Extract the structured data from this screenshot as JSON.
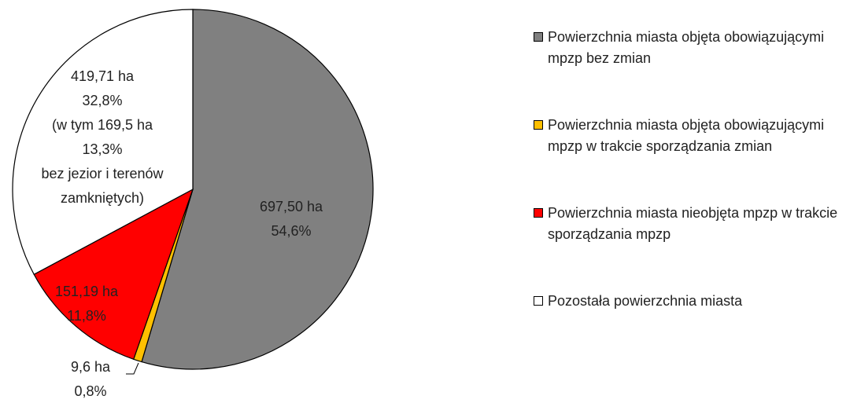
{
  "chart_data": {
    "type": "pie",
    "categories": [
      "Powierzchnia miasta objęta obowiązującymi mpzp bez zmian",
      "Powierzchnia miasta objęta obowiązującymi mpzp w trakcie sporządzania zmian",
      "Powierzchnia miasta nieobjęta mpzp w trakcie sporządzania mpzp",
      "Pozostała powierzchnia miasta"
    ],
    "values": [
      697.5,
      9.6,
      151.19,
      419.71
    ],
    "value_labels": [
      "697,50 ha",
      "9,6 ha",
      "151,19 ha",
      "419,71 ha"
    ],
    "percent_values": [
      54.6,
      0.8,
      11.8,
      32.8
    ],
    "percent_labels": [
      "54,6%",
      "0,8%",
      "11,8%",
      "32,8%"
    ],
    "annotations": [
      "(w tym 169,5 ha",
      "13,3%",
      "bez jezior i terenów",
      "zamkniętych)"
    ],
    "colors": [
      "#808080",
      "#ffc000",
      "#ff0000",
      "#ffffff"
    ]
  }
}
